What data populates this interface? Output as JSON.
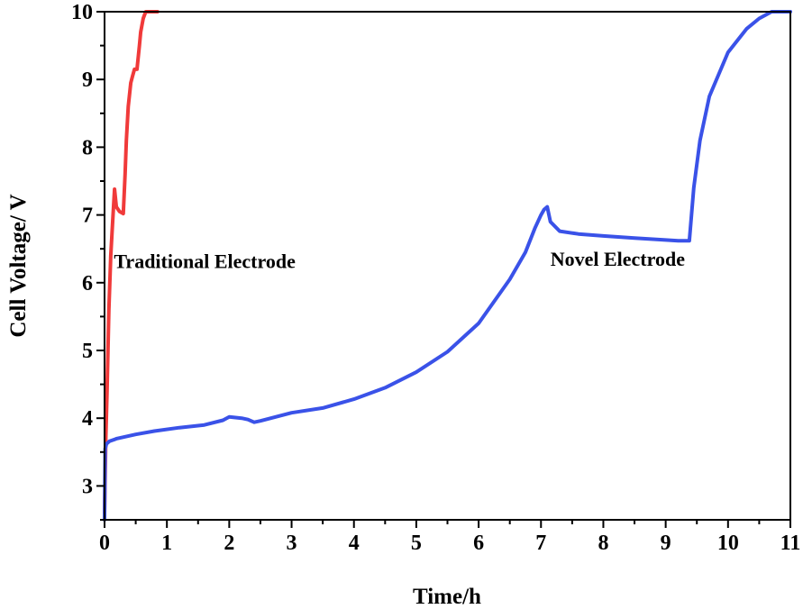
{
  "chart_data": {
    "type": "line",
    "title": "",
    "xlabel": "Time/h",
    "ylabel": "Cell Voltage/ V",
    "xlim": [
      0,
      11
    ],
    "ylim": [
      2.5,
      10
    ],
    "xticks": [
      0,
      1,
      2,
      3,
      4,
      5,
      6,
      7,
      8,
      9,
      10,
      11
    ],
    "yticks": [
      3,
      4,
      5,
      6,
      7,
      8,
      9,
      10
    ],
    "grid": false,
    "legend": "none",
    "annotations": [
      {
        "text": "Traditional Electrode",
        "x": 0.15,
        "y": 6.22
      },
      {
        "text": "Novel Electrode",
        "x": 7.15,
        "y": 6.25
      }
    ],
    "series": [
      {
        "name": "Traditional Electrode",
        "color": "#f03a3a",
        "x": [
          0,
          0.02,
          0.04,
          0.07,
          0.1,
          0.13,
          0.16,
          0.19,
          0.24,
          0.3,
          0.33,
          0.35,
          0.38,
          0.42,
          0.45,
          0.48,
          0.52,
          0.56,
          0.58,
          0.62,
          0.66,
          0.7,
          0.8,
          0.85
        ],
        "y": [
          2.6,
          3.7,
          4.4,
          5.6,
          6.4,
          6.9,
          7.38,
          7.12,
          7.05,
          7.02,
          7.6,
          8.1,
          8.6,
          8.95,
          9.05,
          9.15,
          9.15,
          9.5,
          9.7,
          9.9,
          10.0,
          10.0,
          10.0,
          10.0
        ]
      },
      {
        "name": "Novel Electrode",
        "color": "#3a52e8",
        "x": [
          0,
          0.01,
          0.03,
          0.08,
          0.2,
          0.5,
          0.8,
          1.2,
          1.6,
          1.9,
          2.0,
          2.2,
          2.3,
          2.4,
          2.5,
          3.0,
          3.5,
          4.0,
          4.5,
          5.0,
          5.5,
          6.0,
          6.5,
          6.75,
          6.9,
          7.0,
          7.05,
          7.1,
          7.15,
          7.3,
          7.6,
          8.0,
          8.5,
          9.0,
          9.2,
          9.38,
          9.45,
          9.55,
          9.7,
          10.0,
          10.3,
          10.5,
          10.7,
          10.8,
          11.0
        ],
        "y": [
          2.5,
          3.55,
          3.62,
          3.66,
          3.7,
          3.76,
          3.81,
          3.86,
          3.9,
          3.97,
          4.02,
          4.0,
          3.98,
          3.94,
          3.96,
          4.08,
          4.15,
          4.28,
          4.45,
          4.68,
          4.98,
          5.4,
          6.05,
          6.45,
          6.8,
          7.0,
          7.08,
          7.12,
          6.9,
          6.76,
          6.72,
          6.69,
          6.66,
          6.63,
          6.62,
          6.62,
          7.4,
          8.1,
          8.75,
          9.4,
          9.75,
          9.9,
          10.0,
          10.0,
          10.0
        ]
      }
    ]
  }
}
